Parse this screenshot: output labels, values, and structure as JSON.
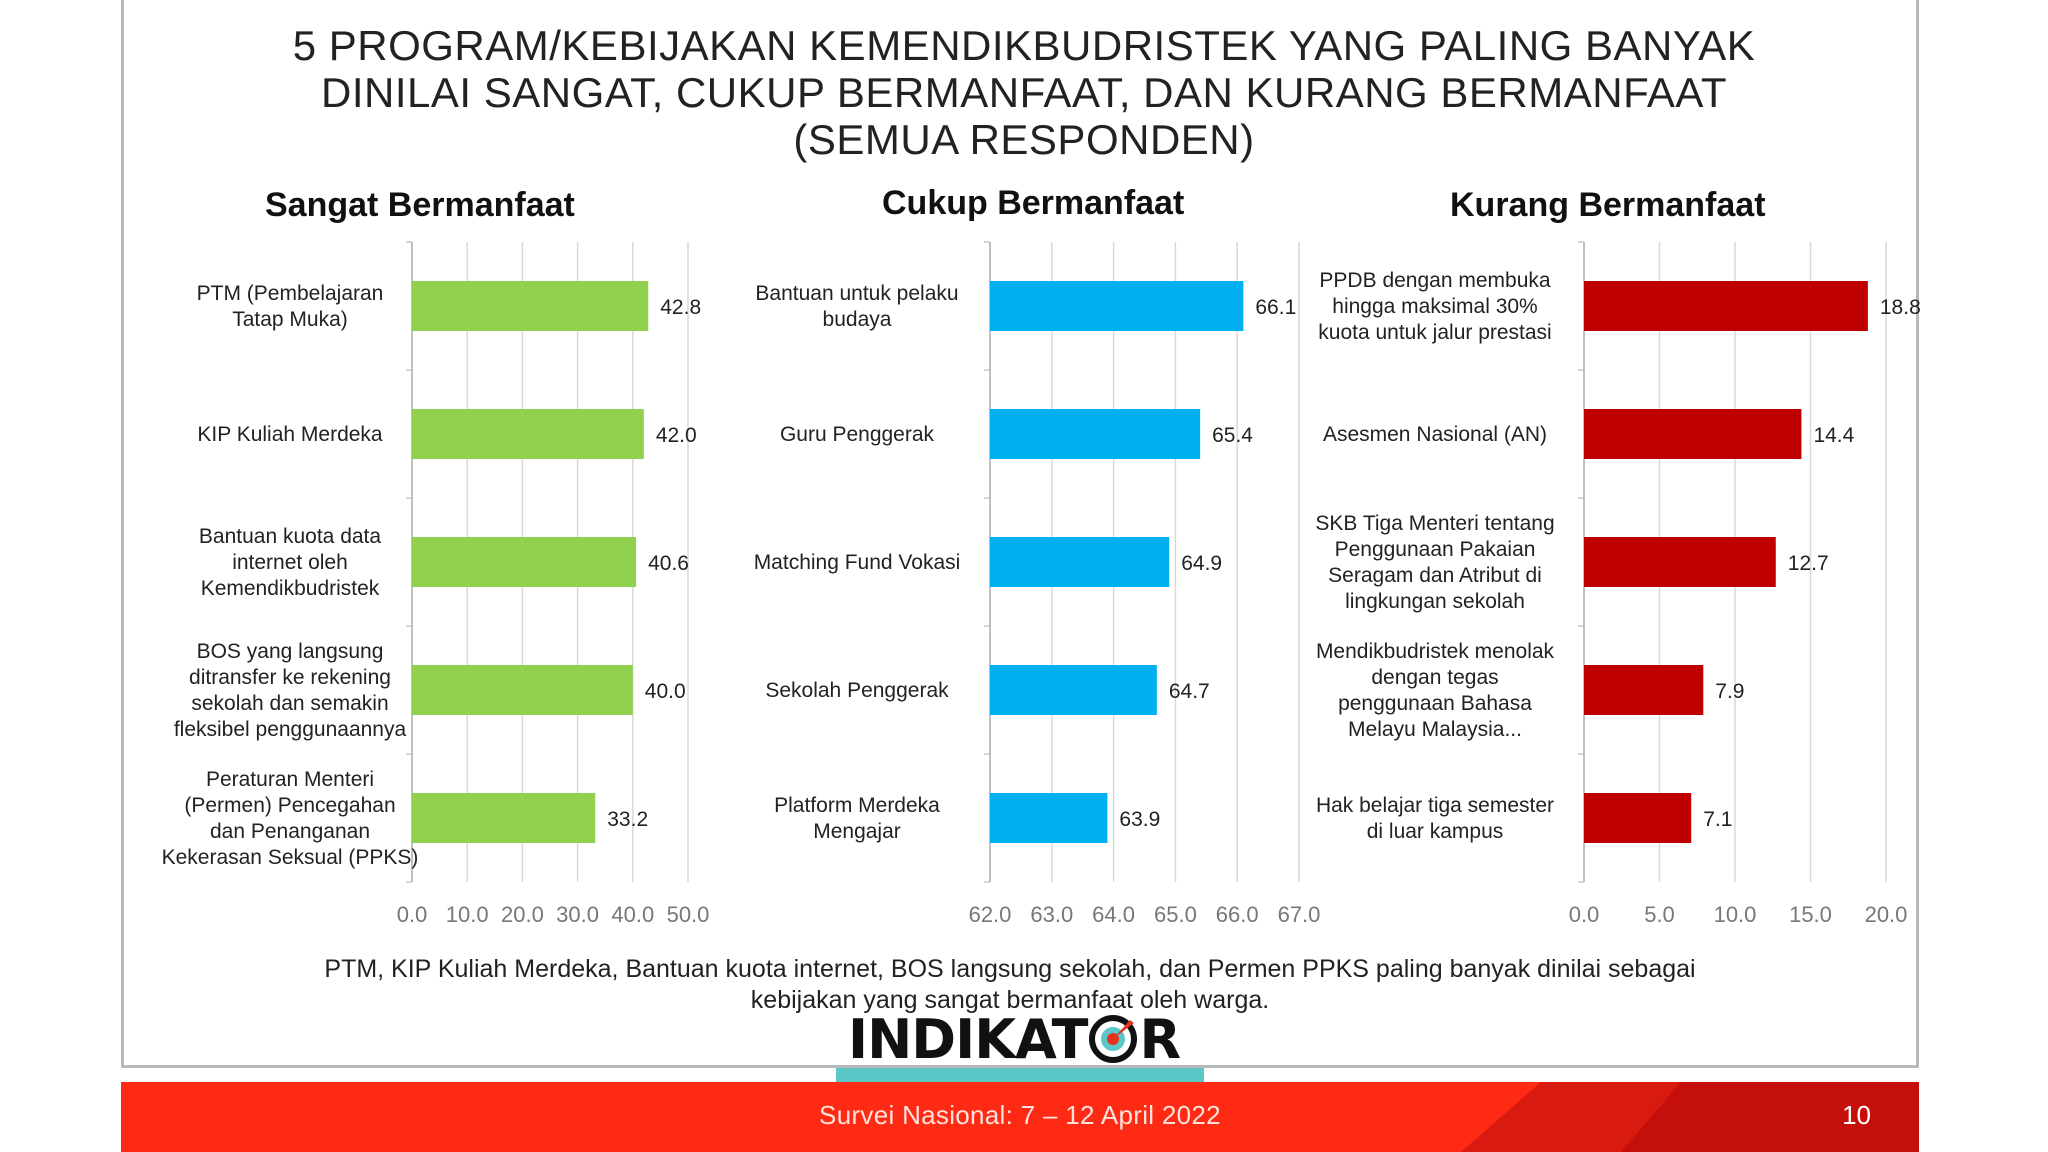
{
  "title_lines": [
    "5 PROGRAM/KEBIJAKAN KEMENDIKBUDRISTEK YANG PALING BANYAK",
    "DINILAI SANGAT, CUKUP BERMANFAAT, DAN KURANG BERMANFAAT",
    "(SEMUA RESPONDEN)"
  ],
  "colors": {
    "green": "#92d050",
    "blue": "#00b0f0",
    "red": "#c00000",
    "footer_red": "#ff2a14",
    "teal": "#5bc7c6"
  },
  "chart_data": [
    {
      "type": "bar",
      "orientation": "horizontal",
      "title": "Sangat Bermanfaat",
      "categories": [
        [
          "PTM (Pembelajaran",
          "Tatap Muka)"
        ],
        [
          "KIP Kuliah Merdeka"
        ],
        [
          "Bantuan kuota data",
          "internet oleh",
          "Kemendikbudristek"
        ],
        [
          "BOS yang langsung",
          "ditransfer ke rekening",
          "sekolah dan semakin",
          "fleksibel penggunaannya"
        ],
        [
          "Peraturan Menteri",
          "(Permen) Pencegahan",
          "dan Penanganan",
          "Kekerasan Seksual (PPKS)"
        ]
      ],
      "values": [
        42.8,
        42.0,
        40.6,
        40.0,
        33.2
      ],
      "value_labels": [
        "42.8",
        "42.0",
        "40.6",
        "40.0",
        "33.2"
      ],
      "xlim": [
        0,
        50
      ],
      "ticks": [
        "0.0",
        "10.0",
        "20.0",
        "30.0",
        "40.0",
        "50.0"
      ],
      "color": "#92d050",
      "grid": true
    },
    {
      "type": "bar",
      "orientation": "horizontal",
      "title": "Cukup Bermanfaat",
      "categories": [
        [
          "Bantuan untuk pelaku",
          "budaya"
        ],
        [
          "Guru Penggerak"
        ],
        [
          "Matching Fund Vokasi"
        ],
        [
          "Sekolah Penggerak"
        ],
        [
          "Platform Merdeka",
          "Mengajar"
        ]
      ],
      "values": [
        66.1,
        65.4,
        64.9,
        64.7,
        63.9
      ],
      "value_labels": [
        "66.1",
        "65.4",
        "64.9",
        "64.7",
        "63.9"
      ],
      "xlim": [
        62,
        67
      ],
      "ticks": [
        "62.0",
        "63.0",
        "64.0",
        "65.0",
        "66.0",
        "67.0"
      ],
      "color": "#00b0f0",
      "grid": true
    },
    {
      "type": "bar",
      "orientation": "horizontal",
      "title": "Kurang Bermanfaat",
      "categories": [
        [
          "PPDB dengan membuka",
          "hingga maksimal 30%",
          "kuota untuk jalur prestasi"
        ],
        [
          "Asesmen Nasional (AN)"
        ],
        [
          "SKB Tiga Menteri tentang",
          "Penggunaan Pakaian",
          "Seragam dan Atribut di",
          "lingkungan sekolah"
        ],
        [
          "Mendikbudristek menolak",
          "dengan tegas",
          "penggunaan Bahasa",
          "Melayu Malaysia..."
        ],
        [
          "Hak belajar tiga semester",
          "di luar kampus"
        ]
      ],
      "values": [
        18.8,
        14.4,
        12.7,
        7.9,
        7.1
      ],
      "value_labels": [
        "18.8",
        "14.4",
        "12.7",
        "7.9",
        "7.1"
      ],
      "xlim": [
        0,
        20
      ],
      "ticks": [
        "0.0",
        "5.0",
        "10.0",
        "15.0",
        "20.0"
      ],
      "color": "#c00000",
      "grid": true
    }
  ],
  "footnote_lines": [
    "PTM, KIP Kuliah Merdeka, Bantuan kuota internet, BOS langsung sekolah, dan Permen PPKS  paling banyak dinilai sebagai",
    "kebijakan yang sangat bermanfaat oleh warga."
  ],
  "logo": {
    "text_left": "INDIKAT",
    "text_right": "R",
    "icon": "target-logo-icon"
  },
  "footer": {
    "survey": "Survei Nasional: 7 – 12 April 2022",
    "page": "10"
  }
}
